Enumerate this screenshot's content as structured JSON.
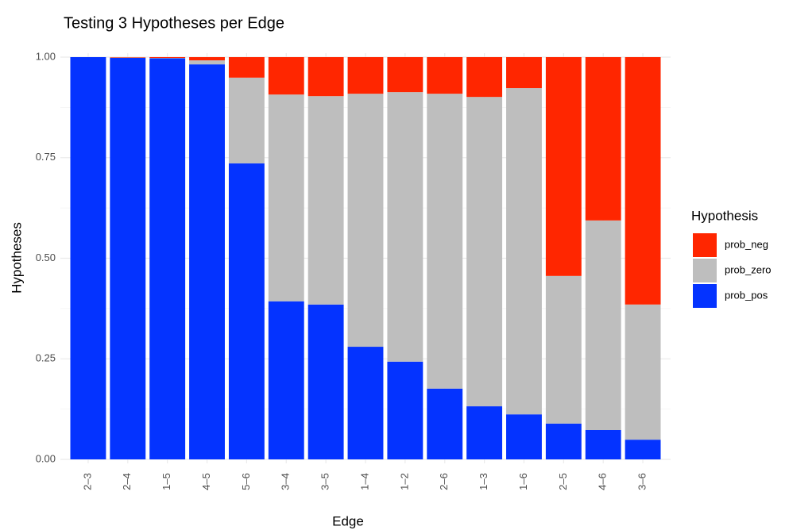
{
  "chart_data": {
    "type": "stacked_bar",
    "title": "Testing 3 Hypotheses per Edge",
    "x_label": "Edge",
    "y_label": "Hypotheses",
    "legend_title": "Hypothesis",
    "legend_position": "right",
    "grid": true,
    "categories": [
      "2–3",
      "2–4",
      "1–5",
      "4–5",
      "5–6",
      "3–4",
      "3–5",
      "1–4",
      "1–2",
      "2–6",
      "1–3",
      "1–6",
      "2–5",
      "4–6",
      "3–6"
    ],
    "series": [
      {
        "name": "prob_neg",
        "color": "#ff2600",
        "values": [
          0,
          0.001,
          0.002,
          0.008,
          0.051,
          0.093,
          0.097,
          0.091,
          0.087,
          0.091,
          0.099,
          0.077,
          0.544,
          0.406,
          0.615
        ]
      },
      {
        "name": "prob_zero",
        "color": "#bebebe",
        "values": [
          0,
          0.001,
          0.001,
          0.01,
          0.213,
          0.514,
          0.518,
          0.629,
          0.67,
          0.733,
          0.769,
          0.811,
          0.367,
          0.521,
          0.336
        ]
      },
      {
        "name": "prob_pos",
        "color": "#0433ff",
        "values": [
          1.0,
          0.998,
          0.997,
          0.982,
          0.736,
          0.393,
          0.385,
          0.28,
          0.243,
          0.176,
          0.132,
          0.112,
          0.089,
          0.073,
          0.049
        ]
      }
    ],
    "ylim": [
      0,
      1
    ],
    "yticks": [
      {
        "value": 0,
        "label": "0.00"
      },
      {
        "value": 0.25,
        "label": "0.25"
      },
      {
        "value": 0.5,
        "label": "0.50"
      },
      {
        "value": 0.75,
        "label": "0.75"
      },
      {
        "value": 1,
        "label": "1.00"
      }
    ]
  }
}
